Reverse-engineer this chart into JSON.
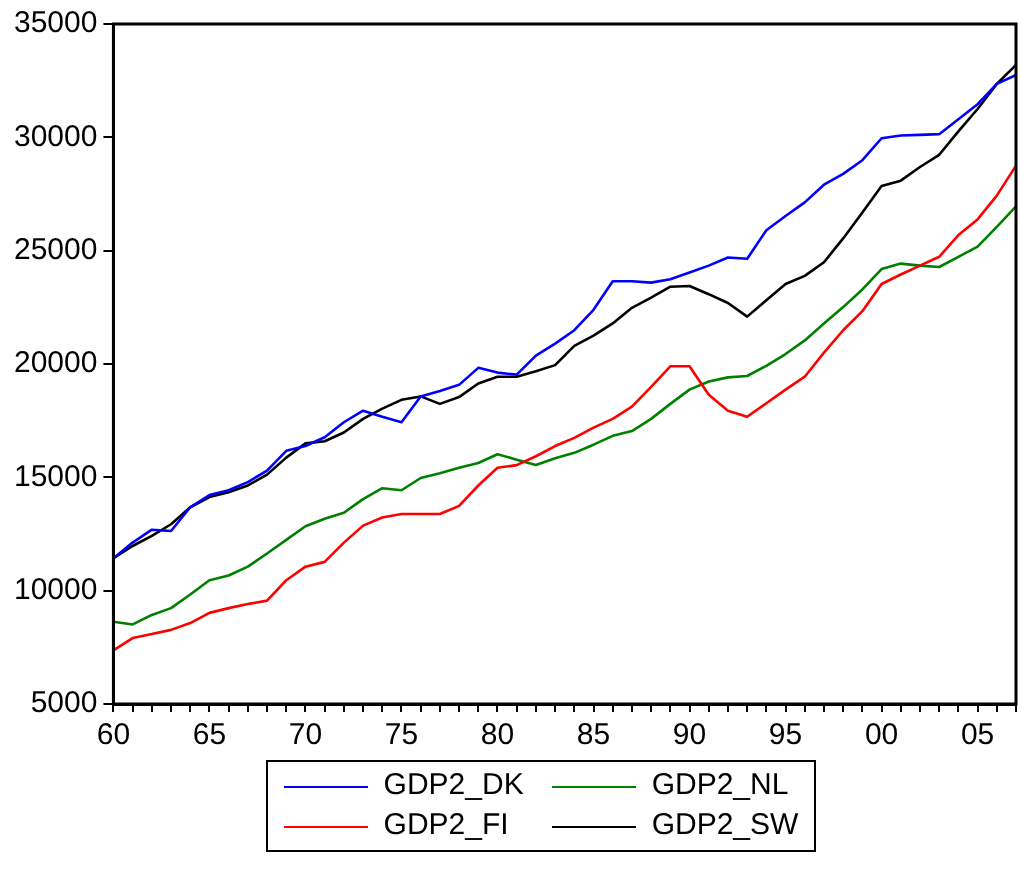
{
  "chart_data": {
    "type": "line",
    "x": [
      1960,
      1961,
      1962,
      1963,
      1964,
      1965,
      1966,
      1967,
      1968,
      1969,
      1970,
      1971,
      1972,
      1973,
      1974,
      1975,
      1976,
      1977,
      1978,
      1979,
      1980,
      1981,
      1982,
      1983,
      1984,
      1985,
      1986,
      1987,
      1988,
      1989,
      1990,
      1991,
      1992,
      1993,
      1994,
      1995,
      1996,
      1997,
      1998,
      1999,
      2000,
      2001,
      2002,
      2003,
      2004,
      2005,
      2006,
      2007
    ],
    "series": [
      {
        "name": "GDP2_DK",
        "color": "#0000ff",
        "values": [
          11430,
          12120,
          12690,
          12630,
          13680,
          14220,
          14430,
          14790,
          15300,
          16170,
          16380,
          16770,
          17430,
          17940,
          17670,
          17430,
          18570,
          18810,
          19080,
          19830,
          19620,
          19530,
          20370,
          20900,
          21490,
          22390,
          23650,
          23650,
          23590,
          23740,
          24040,
          24340,
          24700,
          24640,
          25900,
          26530,
          27130,
          27910,
          28390,
          28990,
          29960,
          30080,
          30110,
          30140,
          30800,
          31460,
          32360,
          32750
        ]
      },
      {
        "name": "GDP2_FI",
        "color": "#ff0000",
        "values": [
          7370,
          7910,
          8090,
          8270,
          8570,
          9020,
          9230,
          9410,
          9560,
          10460,
          11060,
          11270,
          12120,
          12870,
          13230,
          13380,
          13380,
          13380,
          13740,
          14640,
          15420,
          15540,
          15930,
          16380,
          16740,
          17190,
          17580,
          18120,
          18990,
          19900,
          19900,
          18640,
          17940,
          17670,
          18270,
          18870,
          19440,
          20500,
          21490,
          22330,
          23530,
          23950,
          24340,
          24730,
          25690,
          26380,
          27430,
          28750
        ]
      },
      {
        "name": "GDP2_NL",
        "color": "#008000",
        "values": [
          8630,
          8510,
          8930,
          9230,
          9830,
          10460,
          10670,
          11060,
          11640,
          12240,
          12840,
          13170,
          13440,
          14040,
          14520,
          14430,
          14970,
          15180,
          15420,
          15630,
          16020,
          15780,
          15540,
          15840,
          16080,
          16440,
          16830,
          17040,
          17580,
          18240,
          18870,
          19230,
          19410,
          19470,
          19920,
          20440,
          21040,
          21790,
          22510,
          23290,
          24190,
          24430,
          24340,
          24280,
          24730,
          25180,
          26050,
          26950
        ]
      },
      {
        "name": "GDP2_SW",
        "color": "#000000",
        "values": [
          11430,
          11970,
          12420,
          12930,
          13680,
          14130,
          14340,
          14640,
          15120,
          15870,
          16500,
          16590,
          16980,
          17580,
          18030,
          18420,
          18570,
          18240,
          18540,
          19140,
          19440,
          19440,
          19680,
          19950,
          20800,
          21250,
          21790,
          22480,
          22930,
          23410,
          23440,
          23080,
          22690,
          22090,
          22810,
          23530,
          23890,
          24490,
          25540,
          26680,
          27850,
          28090,
          28690,
          29230,
          30260,
          31250,
          32360,
          33200
        ]
      }
    ],
    "xlim": [
      1960,
      2007
    ],
    "xticks": [
      {
        "value": 1960,
        "label": "60"
      },
      {
        "value": 1961,
        "label": null
      },
      {
        "value": 1962,
        "label": null
      },
      {
        "value": 1963,
        "label": null
      },
      {
        "value": 1964,
        "label": null
      },
      {
        "value": 1965,
        "label": "65"
      },
      {
        "value": 1966,
        "label": null
      },
      {
        "value": 1967,
        "label": null
      },
      {
        "value": 1968,
        "label": null
      },
      {
        "value": 1969,
        "label": null
      },
      {
        "value": 1970,
        "label": "70"
      },
      {
        "value": 1971,
        "label": null
      },
      {
        "value": 1972,
        "label": null
      },
      {
        "value": 1973,
        "label": null
      },
      {
        "value": 1974,
        "label": null
      },
      {
        "value": 1975,
        "label": "75"
      },
      {
        "value": 1976,
        "label": null
      },
      {
        "value": 1977,
        "label": null
      },
      {
        "value": 1978,
        "label": null
      },
      {
        "value": 1979,
        "label": null
      },
      {
        "value": 1980,
        "label": "80"
      },
      {
        "value": 1981,
        "label": null
      },
      {
        "value": 1982,
        "label": null
      },
      {
        "value": 1983,
        "label": null
      },
      {
        "value": 1984,
        "label": null
      },
      {
        "value": 1985,
        "label": "85"
      },
      {
        "value": 1986,
        "label": null
      },
      {
        "value": 1987,
        "label": null
      },
      {
        "value": 1988,
        "label": null
      },
      {
        "value": 1989,
        "label": null
      },
      {
        "value": 1990,
        "label": "90"
      },
      {
        "value": 1991,
        "label": null
      },
      {
        "value": 1992,
        "label": null
      },
      {
        "value": 1993,
        "label": null
      },
      {
        "value": 1994,
        "label": null
      },
      {
        "value": 1995,
        "label": "95"
      },
      {
        "value": 1996,
        "label": null
      },
      {
        "value": 1997,
        "label": null
      },
      {
        "value": 1998,
        "label": null
      },
      {
        "value": 1999,
        "label": null
      },
      {
        "value": 2000,
        "label": "00"
      },
      {
        "value": 2001,
        "label": null
      },
      {
        "value": 2002,
        "label": null
      },
      {
        "value": 2003,
        "label": null
      },
      {
        "value": 2004,
        "label": null
      },
      {
        "value": 2005,
        "label": "05"
      },
      {
        "value": 2006,
        "label": null
      },
      {
        "value": 2007,
        "label": null
      }
    ],
    "ylim": [
      5000,
      35000
    ],
    "yticks": [
      5000,
      10000,
      15000,
      20000,
      25000,
      30000,
      35000
    ],
    "grid": false,
    "legend": "bottom",
    "marker": "none",
    "line_style": "solid"
  }
}
